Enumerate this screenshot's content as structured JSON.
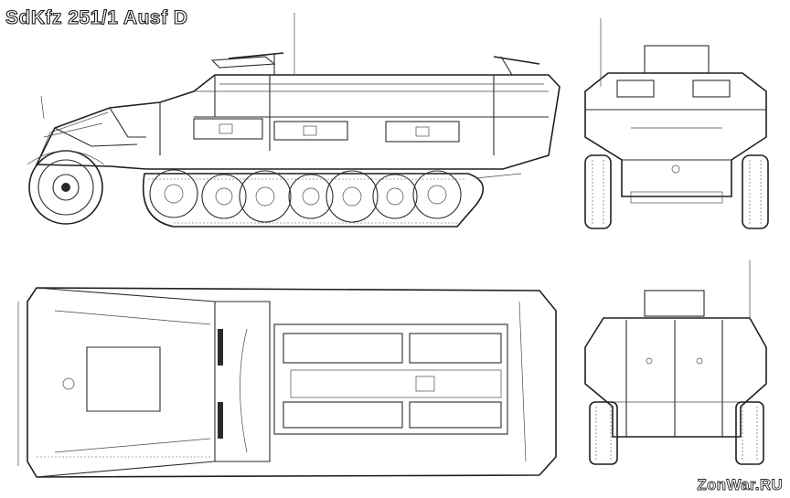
{
  "title": "SdKfz 251/1 Ausf D",
  "watermark": "ZonWar.RU",
  "views": [
    {
      "name": "side-view",
      "icon": "halftrack-side-icon"
    },
    {
      "name": "front-view",
      "icon": "halftrack-front-icon"
    },
    {
      "name": "top-view",
      "icon": "halftrack-top-icon"
    },
    {
      "name": "rear-view",
      "icon": "halftrack-rear-icon"
    }
  ],
  "colors": {
    "line": "#2b2b2b",
    "background": "#ffffff"
  }
}
